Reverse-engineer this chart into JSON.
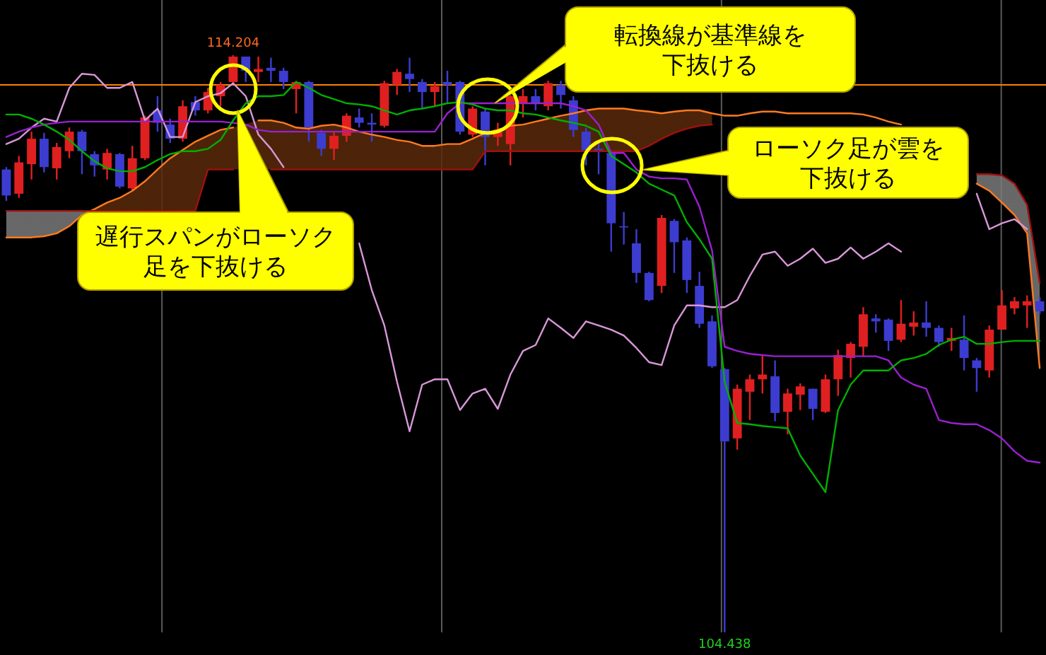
{
  "chart_data": {
    "type": "candlestick",
    "categories": [
      null,
      null,
      null,
      null,
      null,
      null,
      null,
      null,
      null,
      null,
      null,
      null,
      null,
      null,
      null,
      null,
      null,
      null,
      null,
      null,
      null,
      null,
      null,
      null,
      null,
      null,
      null,
      null,
      null,
      null,
      null,
      null,
      null,
      null,
      null,
      null,
      null,
      null,
      null,
      null,
      null,
      null,
      null,
      null,
      null,
      null,
      null,
      null,
      null,
      null,
      null,
      null,
      null,
      null,
      null,
      null,
      null,
      null,
      null,
      null,
      null,
      null,
      null,
      null,
      null,
      null,
      null,
      null,
      null,
      null,
      null,
      null,
      null,
      null,
      null,
      null,
      null,
      null,
      null,
      null,
      null,
      null,
      null
    ],
    "ohlc": [
      [
        112.27,
        112.31,
        111.74,
        111.83
      ],
      [
        111.86,
        112.5,
        111.79,
        112.39
      ],
      [
        112.36,
        112.91,
        112.1,
        112.79
      ],
      [
        112.79,
        112.89,
        112.22,
        112.31
      ],
      [
        112.29,
        112.72,
        112.1,
        112.65
      ],
      [
        112.58,
        112.98,
        112.46,
        112.91
      ],
      [
        112.91,
        112.94,
        112.19,
        112.58
      ],
      [
        112.53,
        112.58,
        112.15,
        112.34
      ],
      [
        112.27,
        112.62,
        112.1,
        112.55
      ],
      [
        112.53,
        112.55,
        111.95,
        111.98
      ],
      [
        111.95,
        112.67,
        111.91,
        112.46
      ],
      [
        112.46,
        113.18,
        112.43,
        113.15
      ],
      [
        113.27,
        113.51,
        112.91,
        113.06
      ],
      [
        113.03,
        113.13,
        112.72,
        112.79
      ],
      [
        112.79,
        113.44,
        112.74,
        113.34
      ],
      [
        113.41,
        113.51,
        113.18,
        113.27
      ],
      [
        113.27,
        113.65,
        113.22,
        113.58
      ],
      [
        113.51,
        113.75,
        113.34,
        113.7
      ],
      [
        113.75,
        114.204,
        113.7,
        114.18
      ],
      [
        114.18,
        114.18,
        113.75,
        113.94
      ],
      [
        113.92,
        114.18,
        113.75,
        113.97
      ],
      [
        113.99,
        114.16,
        113.75,
        113.94
      ],
      [
        113.94,
        113.99,
        113.63,
        113.75
      ],
      [
        113.63,
        113.77,
        113.22,
        113.75
      ],
      [
        113.75,
        113.77,
        112.74,
        112.98
      ],
      [
        112.89,
        112.94,
        112.5,
        112.62
      ],
      [
        112.62,
        112.91,
        112.43,
        112.84
      ],
      [
        112.84,
        113.22,
        112.74,
        113.18
      ],
      [
        113.15,
        113.3,
        112.98,
        113.06
      ],
      [
        113.06,
        113.22,
        112.74,
        113.03
      ],
      [
        113.01,
        113.77,
        112.98,
        113.73
      ],
      [
        113.7,
        113.97,
        113.53,
        113.92
      ],
      [
        113.89,
        114.16,
        113.58,
        113.8
      ],
      [
        113.75,
        113.8,
        113.3,
        113.58
      ],
      [
        113.58,
        113.75,
        113.34,
        113.68
      ],
      [
        113.75,
        113.94,
        113.39,
        113.7
      ],
      [
        113.75,
        113.77,
        112.86,
        112.91
      ],
      [
        112.86,
        113.34,
        112.82,
        113.3
      ],
      [
        113.25,
        113.3,
        112.34,
        112.82
      ],
      [
        112.82,
        113.06,
        112.67,
        112.94
      ],
      [
        112.7,
        113.53,
        112.34,
        113.51
      ],
      [
        113.39,
        113.63,
        113.15,
        113.51
      ],
      [
        113.51,
        113.63,
        113.27,
        113.39
      ],
      [
        113.34,
        113.77,
        113.27,
        113.73
      ],
      [
        113.7,
        113.77,
        113.3,
        113.53
      ],
      [
        113.44,
        113.51,
        112.82,
        112.94
      ],
      [
        112.91,
        112.98,
        112.34,
        112.58
      ],
      [
        112.62,
        112.74,
        112.19,
        112.58
      ],
      [
        112.55,
        112.58,
        110.88,
        111.36
      ],
      [
        111.31,
        111.55,
        111.0,
        111.29
      ],
      [
        111.02,
        111.26,
        110.35,
        110.52
      ],
      [
        110.52,
        110.54,
        110.04,
        110.06
      ],
      [
        110.3,
        111.5,
        110.18,
        111.45
      ],
      [
        111.4,
        111.43,
        110.52,
        111.04
      ],
      [
        111.07,
        111.12,
        110.18,
        110.4
      ],
      [
        110.3,
        110.54,
        109.59,
        109.66
      ],
      [
        109.7,
        109.8,
        108.91,
        108.94
      ],
      [
        108.89,
        108.91,
        104.438,
        107.67
      ],
      [
        107.72,
        108.63,
        107.53,
        108.56
      ],
      [
        108.51,
        108.8,
        108.03,
        108.72
      ],
      [
        108.72,
        109.13,
        108.48,
        108.8
      ],
      [
        108.77,
        109.04,
        108.01,
        108.15
      ],
      [
        108.17,
        108.56,
        107.79,
        108.48
      ],
      [
        108.46,
        108.65,
        108.2,
        108.6
      ],
      [
        108.56,
        108.56,
        108.03,
        108.22
      ],
      [
        108.17,
        108.8,
        108.15,
        108.72
      ],
      [
        108.72,
        109.22,
        108.44,
        109.13
      ],
      [
        109.08,
        109.35,
        108.75,
        109.32
      ],
      [
        109.27,
        109.94,
        109.11,
        109.82
      ],
      [
        109.75,
        109.82,
        109.51,
        109.7
      ],
      [
        109.73,
        109.75,
        109.2,
        109.37
      ],
      [
        109.39,
        110.06,
        109.35,
        109.66
      ],
      [
        109.61,
        109.87,
        109.46,
        109.68
      ],
      [
        109.68,
        110.04,
        109.44,
        109.59
      ],
      [
        109.59,
        109.63,
        109.27,
        109.35
      ],
      [
        109.37,
        109.59,
        109.2,
        109.42
      ],
      [
        109.39,
        109.8,
        108.87,
        109.08
      ],
      [
        109.04,
        109.08,
        108.51,
        108.91
      ],
      [
        108.87,
        109.63,
        108.75,
        109.56
      ],
      [
        109.56,
        110.23,
        109.56,
        109.97
      ],
      [
        109.92,
        110.11,
        109.82,
        110.04
      ],
      [
        109.97,
        110.14,
        109.59,
        110.04
      ],
      [
        110.04,
        110.11,
        109.82,
        109.87
      ]
    ],
    "colors": [
      "#3c3cd0",
      "#e02020",
      "#e02020",
      "#3c3cd0",
      "#e02020",
      "#e02020",
      "#3c3cd0",
      "#3c3cd0",
      "#e02020",
      "#3c3cd0",
      "#e02020",
      "#e02020",
      "#3c3cd0",
      "#3c3cd0",
      "#e02020",
      "#3c3cd0",
      "#e02020",
      "#e02020",
      "#e02020",
      "#3c3cd0",
      "#e02020",
      "#3c3cd0",
      "#3c3cd0",
      "#e02020",
      "#3c3cd0",
      "#3c3cd0",
      "#e02020",
      "#e02020",
      "#3c3cd0",
      "#3c3cd0",
      "#e02020",
      "#e02020",
      "#3c3cd0",
      "#3c3cd0",
      "#e02020",
      "#3c3cd0",
      "#3c3cd0",
      "#e02020",
      "#3c3cd0",
      "#e02020",
      "#e02020",
      "#e02020",
      "#3c3cd0",
      "#e02020",
      "#3c3cd0",
      "#3c3cd0",
      "#3c3cd0",
      "#3c3cd0",
      "#3c3cd0",
      "#3c3cd0",
      "#3c3cd0",
      "#3c3cd0",
      "#e02020",
      "#3c3cd0",
      "#3c3cd0",
      "#3c3cd0",
      "#3c3cd0",
      "#3c3cd0",
      "#e02020",
      "#e02020",
      "#e02020",
      "#3c3cd0",
      "#e02020",
      "#e02020",
      "#3c3cd0",
      "#e02020",
      "#e02020",
      "#e02020",
      "#e02020",
      "#3c3cd0",
      "#3c3cd0",
      "#e02020",
      "#e02020",
      "#3c3cd0",
      "#3c3cd0",
      "#e02020",
      "#3c3cd0",
      "#3c3cd0",
      "#e02020",
      "#e02020",
      "#e02020",
      "#e02020",
      "#3c3cd0"
    ],
    "series": [
      {
        "type": "line",
        "color": "#ff7a20",
        "colors": [
          "#7a7a7a",
          "#7a7a7a",
          "#7a7a7a",
          "#7a7a7a",
          "#7a7a7a",
          "#7a7a7a",
          "#7a7a7a",
          "#5a2a0a",
          "#5a2a0a",
          "#5a2a0a",
          "#5a2a0a",
          "#5a2a0a",
          "#5a2a0a",
          "#5a2a0a",
          "#5a2a0a",
          "#5a2a0a",
          "#5a2a0a",
          "#5a2a0a",
          "#5a2a0a",
          "#5a2a0a",
          "#5a2a0a",
          "#5a2a0a",
          "#5a2a0a",
          "#5a2a0a",
          "#5a2a0a",
          "#5a2a0a",
          "#5a2a0a",
          "#5a2a0a",
          "#5a2a0a",
          "#5a2a0a",
          "#5a2a0a",
          "#5a2a0a",
          "#5a2a0a",
          "#5a2a0a",
          "#5a2a0a",
          "#5a2a0a",
          "#5a2a0a",
          "#5a2a0a",
          "#5a2a0a",
          "#5a2a0a",
          "#5a2a0a",
          "#5a2a0a",
          "#5a2a0a",
          "#5a2a0a",
          "#5a2a0a",
          "#5a2a0a",
          "#5a2a0a",
          "#5a2a0a",
          "#5a2a0a",
          "#5a2a0a",
          "#5a2a0a",
          "#5a2a0a",
          "#5a2a0a",
          "#5a2a0a",
          "#5a2a0a",
          "#5a2a0a",
          "#5a2a0a",
          "#5a2a0a",
          "#5a2a0a",
          "#5a2a0a",
          "#5a2a0a",
          "#5a2a0a",
          "#5a2a0a",
          "#5a2a0a",
          "#5a2a0a",
          "#5a2a0a",
          "#5a2a0a",
          "#5a2a0a",
          "#5a2a0a",
          "#5a2a0a",
          "#5a2a0a",
          "#5a2a0a",
          null,
          null,
          null,
          null,
          "#7a7a7a",
          "#7a7a7a",
          "#7a7a7a",
          "#7a7a7a",
          "#7a7a7a",
          "#7a7a7a",
          "#7a7a7a"
        ],
        "values": [
          111.12,
          111.12,
          111.12,
          111.14,
          111.19,
          111.31,
          111.5,
          111.6,
          111.71,
          111.79,
          111.91,
          112.07,
          112.27,
          112.46,
          112.6,
          112.74,
          112.84,
          112.94,
          112.98,
          null,
          113.1,
          113.1,
          113.06,
          112.98,
          112.96,
          113.01,
          113.03,
          112.98,
          112.91,
          112.86,
          112.82,
          112.77,
          112.74,
          112.67,
          112.67,
          112.7,
          112.7,
          112.79,
          112.89,
          112.94,
          113.01,
          113.03,
          113.08,
          113.13,
          113.18,
          113.22,
          113.27,
          113.3,
          113.3,
          113.3,
          113.27,
          113.25,
          113.22,
          113.25,
          113.27,
          113.27,
          113.22,
          113.18,
          113.18,
          113.22,
          113.25,
          113.25,
          113.22,
          113.22,
          113.22,
          113.22,
          113.22,
          113.22,
          113.2,
          113.15,
          113.08,
          113.03,
          null,
          null,
          null,
          null,
          null,
          112.03,
          111.91,
          111.71,
          111.5,
          111.19,
          108.91
        ]
      },
      {
        "type": "line",
        "color": "#a01010",
        "values": [
          111.57,
          111.57,
          111.57,
          111.57,
          111.57,
          111.57,
          111.57,
          111.57,
          111.57,
          111.57,
          111.57,
          111.57,
          111.57,
          111.57,
          111.57,
          111.57,
          112.27,
          112.27,
          112.27,
          null,
          null,
          112.27,
          112.27,
          112.27,
          112.27,
          112.27,
          112.27,
          112.27,
          112.27,
          112.27,
          112.27,
          112.27,
          112.27,
          112.27,
          112.27,
          112.27,
          112.27,
          112.27,
          112.58,
          112.58,
          112.58,
          112.58,
          112.58,
          112.58,
          112.58,
          112.58,
          112.58,
          112.58,
          112.58,
          112.58,
          112.58,
          112.67,
          112.79,
          112.89,
          112.96,
          113.01,
          113.03,
          null,
          null,
          null,
          null,
          null,
          null,
          null,
          null,
          null,
          null,
          null,
          null,
          null,
          null,
          null,
          null,
          null,
          null,
          null,
          null,
          112.19,
          112.19,
          112.17,
          112.03,
          111.67,
          110.35
        ]
      },
      {
        "type": "line",
        "color": "#d898d8",
        "values": [
          112.7,
          112.79,
          112.98,
          113.13,
          113.08,
          113.65,
          113.89,
          113.87,
          113.65,
          113.65,
          113.75,
          113.1,
          113.3,
          112.82,
          112.82,
          113.41,
          113.51,
          113.56,
          113.73,
          113.51,
          112.86,
          112.62,
          112.31,
          null,
          null,
          null,
          null,
          null,
          111.02,
          110.23,
          109.63,
          108.68,
          107.84,
          108.63,
          108.72,
          108.72,
          108.2,
          108.48,
          108.56,
          108.22,
          108.8,
          109.2,
          109.3,
          109.75,
          109.59,
          109.42,
          109.7,
          109.63,
          109.56,
          109.46,
          109.25,
          109.01,
          108.96,
          109.63,
          109.97,
          109.97,
          109.94,
          109.94,
          110.06,
          110.47,
          110.83,
          110.88,
          110.64,
          110.76,
          110.93,
          110.69,
          110.76,
          110.95,
          110.76,
          110.88,
          111.02,
          110.88,
          null,
          null,
          null,
          null,
          null,
          111.86,
          111.26,
          111.36,
          111.43,
          111.26,
          null
        ]
      },
      {
        "type": "line",
        "color": "#9a20d0",
        "values": [
          112.82,
          112.91,
          112.98,
          113.03,
          113.06,
          113.08,
          113.08,
          113.08,
          113.08,
          113.08,
          113.08,
          113.08,
          113.08,
          113.08,
          113.08,
          113.08,
          113.08,
          113.08,
          113.06,
          113.03,
          112.94,
          112.91,
          112.91,
          112.91,
          112.91,
          112.91,
          112.91,
          112.91,
          112.91,
          112.91,
          112.91,
          112.91,
          112.91,
          112.91,
          112.91,
          113.22,
          113.39,
          113.39,
          113.39,
          113.39,
          113.39,
          113.39,
          113.39,
          113.39,
          113.39,
          113.34,
          113.27,
          113.03,
          112.55,
          112.55,
          112.27,
          112.15,
          112.12,
          112.12,
          112.1,
          111.64,
          110.9,
          109.27,
          109.2,
          109.15,
          109.13,
          109.11,
          109.11,
          109.11,
          109.11,
          109.11,
          109.11,
          109.11,
          109.11,
          109.11,
          109.04,
          108.75,
          108.63,
          108.56,
          108.03,
          107.98,
          107.96,
          107.96,
          107.86,
          107.72,
          107.5,
          107.34,
          107.31
        ]
      },
      {
        "type": "line",
        "color": "#00b000",
        "values": [
          113.2,
          113.2,
          113.13,
          113.03,
          112.91,
          112.77,
          112.58,
          112.41,
          112.29,
          112.24,
          112.24,
          112.31,
          112.43,
          112.53,
          112.58,
          112.58,
          112.62,
          112.77,
          113.1,
          113.39,
          113.51,
          113.51,
          113.53,
          113.75,
          113.65,
          113.53,
          113.46,
          113.39,
          113.37,
          113.34,
          113.27,
          113.2,
          113.27,
          113.3,
          113.34,
          113.39,
          113.41,
          113.37,
          113.3,
          113.27,
          113.27,
          113.22,
          113.2,
          113.15,
          113.1,
          113.06,
          113.01,
          112.91,
          112.5,
          112.36,
          112.22,
          112.03,
          111.93,
          111.83,
          111.38,
          111.09,
          110.76,
          108.68,
          107.98,
          107.96,
          107.93,
          107.91,
          107.89,
          107.43,
          107.12,
          106.81,
          108.2,
          108.63,
          108.87,
          108.87,
          108.87,
          109.04,
          109.08,
          109.15,
          109.3,
          109.39,
          109.44,
          109.32,
          109.32,
          109.35,
          109.37,
          109.37,
          109.37
        ]
      }
    ],
    "ref_lines": [
      {
        "axis": "y",
        "value": 113.7,
        "color": "#ff8000"
      }
    ],
    "annotations": [
      {
        "text": "114.204",
        "y": 114.204
      },
      "104.438",
      "遅行スパンがローソク足を下抜ける",
      "転換線が基準線を下抜ける",
      "ローソク足が雲を下抜ける"
    ]
  }
}
